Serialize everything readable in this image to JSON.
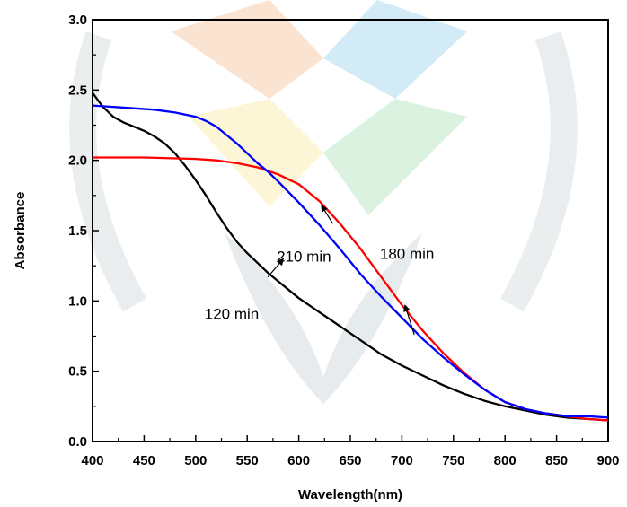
{
  "chart_data": {
    "type": "line",
    "title": "",
    "xlabel": "Wavelength(nm)",
    "ylabel": "Absorbance",
    "xlim": [
      400,
      900
    ],
    "ylim": [
      0.0,
      3.0
    ],
    "x_ticks": [
      "400",
      "450",
      "500",
      "550",
      "600",
      "650",
      "700",
      "750",
      "800",
      "850",
      "900"
    ],
    "y_ticks": [
      "0.0",
      "0.5",
      "1.0",
      "1.5",
      "2.0",
      "2.5",
      "3.0"
    ],
    "grid": false,
    "legend": "none",
    "series": [
      {
        "name": "120 min",
        "color": "#000000",
        "x": [
          400,
          410,
          420,
          430,
          440,
          450,
          460,
          470,
          480,
          490,
          500,
          510,
          520,
          530,
          540,
          550,
          560,
          570,
          580,
          590,
          600,
          620,
          640,
          660,
          680,
          700,
          720,
          740,
          760,
          780,
          800,
          820,
          840,
          860,
          880,
          900
        ],
        "y": [
          2.48,
          2.38,
          2.31,
          2.27,
          2.24,
          2.21,
          2.17,
          2.12,
          2.05,
          1.96,
          1.86,
          1.75,
          1.63,
          1.52,
          1.42,
          1.34,
          1.27,
          1.2,
          1.14,
          1.08,
          1.02,
          0.92,
          0.82,
          0.72,
          0.62,
          0.54,
          0.47,
          0.4,
          0.34,
          0.29,
          0.25,
          0.22,
          0.19,
          0.17,
          0.16,
          0.15
        ]
      },
      {
        "name": "180 min",
        "color": "#ff0000",
        "x": [
          400,
          450,
          500,
          520,
          540,
          560,
          580,
          600,
          620,
          640,
          660,
          680,
          700,
          720,
          740,
          760,
          780,
          800,
          820,
          840,
          860,
          880,
          900
        ],
        "y": [
          2.02,
          2.02,
          2.01,
          2.0,
          1.98,
          1.95,
          1.9,
          1.83,
          1.71,
          1.55,
          1.37,
          1.17,
          0.97,
          0.79,
          0.63,
          0.49,
          0.37,
          0.28,
          0.23,
          0.2,
          0.18,
          0.16,
          0.15
        ]
      },
      {
        "name": "210 min",
        "color": "#0000ff",
        "x": [
          400,
          420,
          440,
          460,
          480,
          500,
          510,
          520,
          530,
          540,
          550,
          560,
          570,
          580,
          600,
          620,
          640,
          660,
          680,
          700,
          720,
          740,
          760,
          780,
          800,
          820,
          840,
          860,
          880,
          900
        ],
        "y": [
          2.39,
          2.38,
          2.37,
          2.36,
          2.34,
          2.31,
          2.28,
          2.24,
          2.18,
          2.12,
          2.05,
          1.98,
          1.92,
          1.85,
          1.7,
          1.54,
          1.37,
          1.19,
          1.03,
          0.88,
          0.73,
          0.6,
          0.48,
          0.37,
          0.28,
          0.23,
          0.2,
          0.18,
          0.18,
          0.17
        ]
      }
    ],
    "annotations": [
      {
        "text": "120 min",
        "series": "120 min",
        "label_at": [
          535,
          0.87
        ],
        "arrow_from": [
          570,
          1.17
        ],
        "arrow_to": [
          585,
          1.3
        ]
      },
      {
        "text": "210 min",
        "series": "210 min",
        "label_at": [
          605,
          1.28
        ],
        "arrow_from": [
          633,
          1.55
        ],
        "arrow_to": [
          622,
          1.68
        ]
      },
      {
        "text": "180 min",
        "series": "180 min",
        "label_at": [
          705,
          1.3
        ],
        "arrow_from": [
          712,
          0.76
        ],
        "arrow_to": [
          703,
          0.97
        ]
      }
    ]
  }
}
